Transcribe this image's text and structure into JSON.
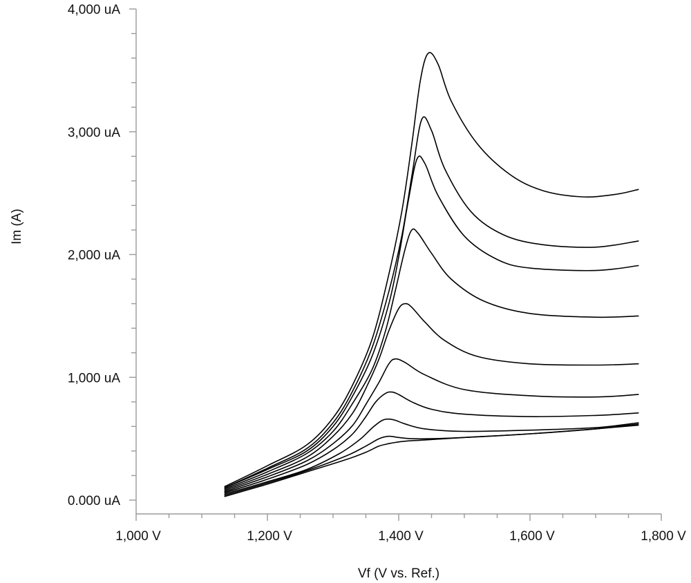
{
  "chart_data": {
    "type": "line",
    "title": "",
    "xlabel": "Vf (V vs. Ref.)",
    "ylabel": "Im (A)",
    "xlim": [
      1000,
      1800
    ],
    "ylim": [
      0,
      4000
    ],
    "x_ticks": [
      {
        "value": 1000,
        "label": "1,000 V"
      },
      {
        "value": 1200,
        "label": "1,200 V"
      },
      {
        "value": 1400,
        "label": "1,400 V"
      },
      {
        "value": 1600,
        "label": "1,600 V"
      },
      {
        "value": 1800,
        "label": "1,800 V"
      }
    ],
    "y_ticks": [
      {
        "value": 0,
        "label": "0.000 uA"
      },
      {
        "value": 1000,
        "label": "1,000 uA"
      },
      {
        "value": 2000,
        "label": "2,000 uA"
      },
      {
        "value": 3000,
        "label": "3,000 uA"
      },
      {
        "value": 4000,
        "label": "4,000 uA"
      }
    ],
    "x_minor_step": 50,
    "y_minor_step": 200,
    "grid": false,
    "legend": "none",
    "line_color": "#000000",
    "series": [
      {
        "x": [
          1135,
          1200,
          1260,
          1320,
          1350,
          1370,
          1385,
          1395,
          1410,
          1440,
          1500,
          1600,
          1700,
          1765
        ],
        "y": [
          30,
          130,
          230,
          330,
          390,
          440,
          460,
          470,
          480,
          490,
          510,
          540,
          580,
          610
        ]
      },
      {
        "x": [
          1135,
          1200,
          1260,
          1320,
          1350,
          1370,
          1385,
          1400,
          1420,
          1450,
          1500,
          1600,
          1700,
          1765
        ],
        "y": [
          40,
          140,
          240,
          360,
          440,
          500,
          520,
          510,
          500,
          500,
          510,
          540,
          580,
          620
        ]
      },
      {
        "x": [
          1135,
          1200,
          1260,
          1310,
          1340,
          1360,
          1375,
          1385,
          1395,
          1410,
          1440,
          1500,
          1600,
          1700,
          1765
        ],
        "y": [
          50,
          150,
          250,
          380,
          490,
          590,
          650,
          660,
          650,
          620,
          580,
          560,
          570,
          590,
          630
        ]
      },
      {
        "x": [
          1135,
          1200,
          1260,
          1300,
          1330,
          1350,
          1365,
          1380,
          1390,
          1400,
          1420,
          1450,
          1500,
          1600,
          1700,
          1765
        ],
        "y": [
          60,
          170,
          290,
          410,
          540,
          680,
          800,
          870,
          880,
          860,
          800,
          740,
          700,
          680,
          690,
          710
        ]
      },
      {
        "x": [
          1135,
          1200,
          1260,
          1300,
          1330,
          1350,
          1370,
          1385,
          1395,
          1410,
          1440,
          1500,
          1600,
          1700,
          1765
        ],
        "y": [
          70,
          190,
          320,
          460,
          610,
          780,
          960,
          1110,
          1150,
          1120,
          1020,
          900,
          850,
          840,
          860
        ]
      },
      {
        "x": [
          1135,
          1200,
          1260,
          1300,
          1330,
          1350,
          1370,
          1385,
          1400,
          1410,
          1420,
          1440,
          1470,
          1520,
          1600,
          1700,
          1765
        ],
        "y": [
          80,
          210,
          350,
          520,
          710,
          910,
          1150,
          1380,
          1560,
          1600,
          1570,
          1450,
          1300,
          1170,
          1110,
          1100,
          1110
        ]
      },
      {
        "x": [
          1135,
          1200,
          1260,
          1300,
          1330,
          1360,
          1380,
          1395,
          1410,
          1420,
          1430,
          1450,
          1480,
          1530,
          1600,
          1700,
          1765
        ],
        "y": [
          90,
          230,
          380,
          560,
          790,
          1070,
          1380,
          1710,
          2050,
          2200,
          2170,
          2010,
          1800,
          1620,
          1520,
          1490,
          1500
        ]
      },
      {
        "x": [
          1135,
          1200,
          1260,
          1300,
          1330,
          1360,
          1385,
          1400,
          1415,
          1428,
          1440,
          1460,
          1500,
          1550,
          1600,
          1700,
          1765
        ],
        "y": [
          100,
          250,
          400,
          600,
          850,
          1180,
          1600,
          1980,
          2450,
          2780,
          2740,
          2480,
          2150,
          1960,
          1890,
          1870,
          1910
        ]
      },
      {
        "x": [
          1135,
          1200,
          1260,
          1300,
          1330,
          1360,
          1385,
          1405,
          1420,
          1435,
          1450,
          1470,
          1510,
          1560,
          1620,
          1700,
          1765
        ],
        "y": [
          100,
          260,
          420,
          630,
          890,
          1250,
          1700,
          2160,
          2640,
          3100,
          3010,
          2700,
          2350,
          2160,
          2080,
          2060,
          2110
        ]
      },
      {
        "x": [
          1135,
          1200,
          1260,
          1300,
          1330,
          1360,
          1385,
          1405,
          1420,
          1433,
          1445,
          1460,
          1480,
          1520,
          1570,
          1620,
          1680,
          1730,
          1765
        ],
        "y": [
          110,
          280,
          450,
          670,
          940,
          1320,
          1840,
          2360,
          2900,
          3420,
          3640,
          3550,
          3250,
          2900,
          2650,
          2520,
          2470,
          2490,
          2530
        ]
      }
    ]
  }
}
